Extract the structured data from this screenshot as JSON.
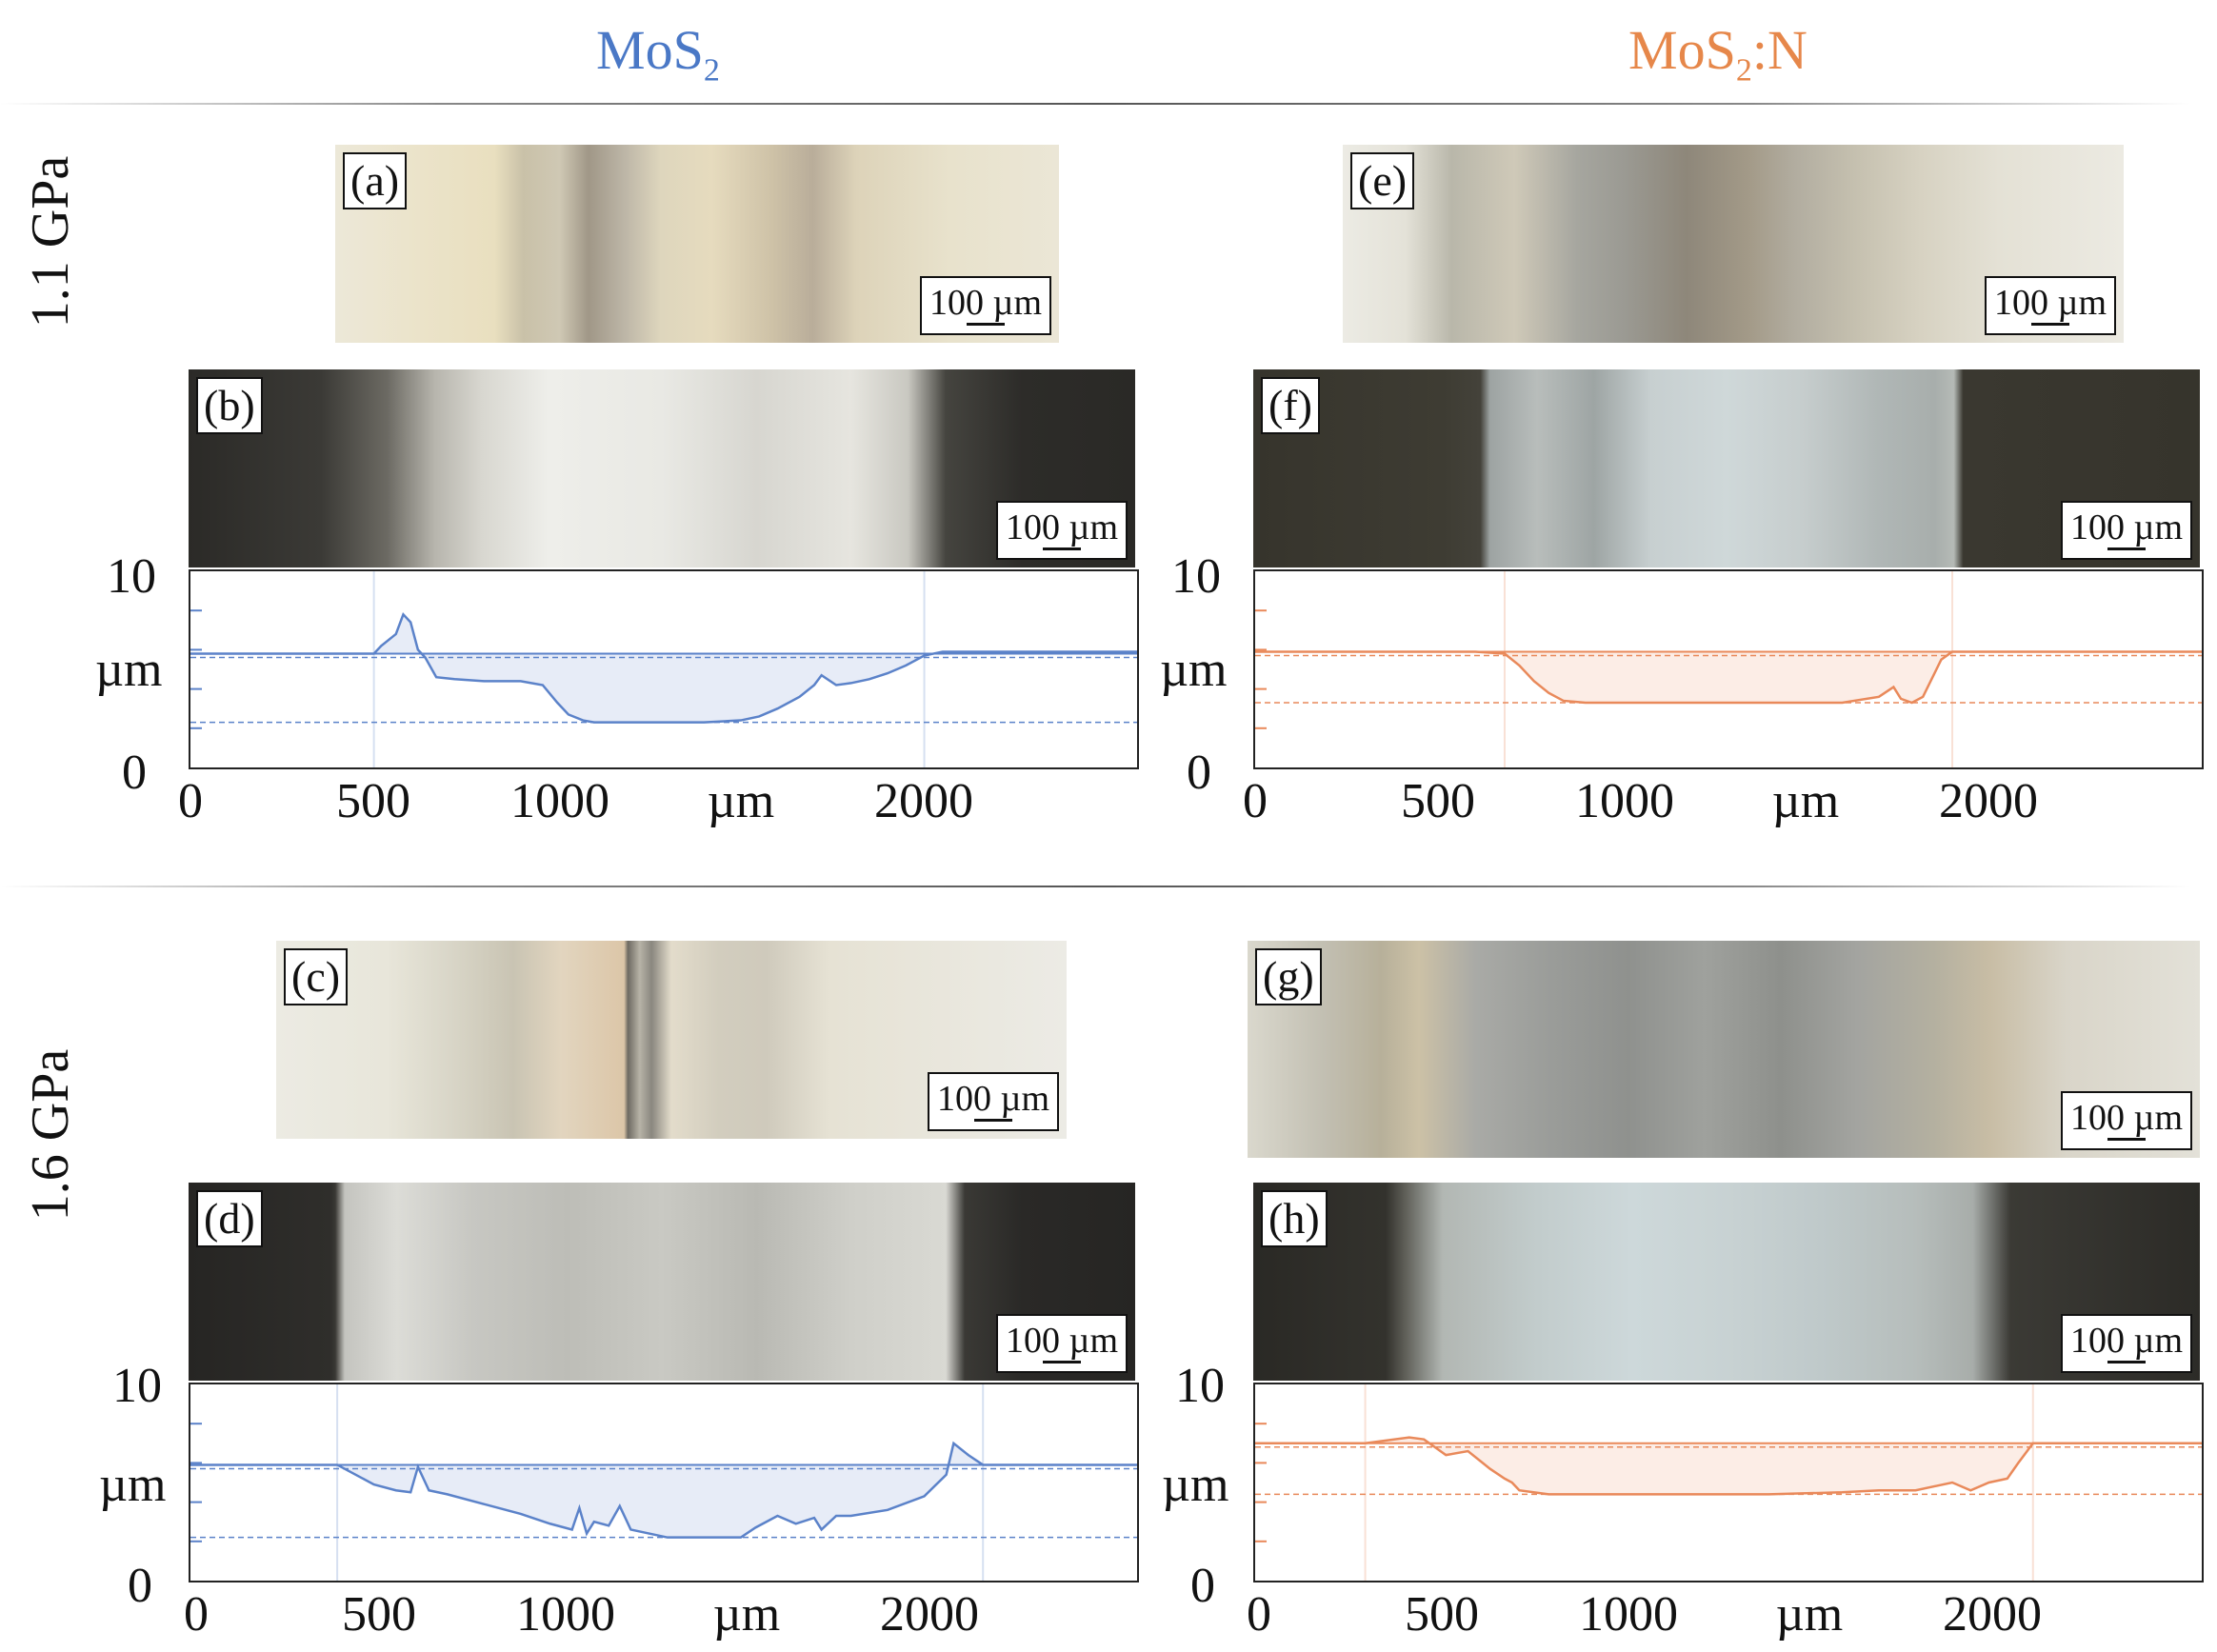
{
  "columns": {
    "left": {
      "title_main": "MoS",
      "title_sub": "2",
      "title_suffix": "",
      "color": "#4a78c6"
    },
    "right": {
      "title_main": "MoS",
      "title_sub": "2",
      "title_suffix": ":N",
      "color": "#e6874a"
    }
  },
  "rows": {
    "top": {
      "label": "1.1 GPa"
    },
    "bottom": {
      "label": "1.6 GPa"
    }
  },
  "panels": {
    "a": {
      "label": "(a)",
      "scale": "100 µm"
    },
    "b": {
      "label": "(b)",
      "scale": "100 µm"
    },
    "c": {
      "label": "(c)",
      "scale": "100 µm"
    },
    "d": {
      "label": "(d)",
      "scale": "100 µm"
    },
    "e": {
      "label": "(e)",
      "scale": "100 µm"
    },
    "f": {
      "label": "(f)",
      "scale": "100 µm"
    },
    "g": {
      "label": "(g)",
      "scale": "100 µm"
    },
    "h": {
      "label": "(h)",
      "scale": "100 µm"
    }
  },
  "chart_data": [
    {
      "id": "profile-b",
      "type": "area",
      "color": "#5b82c9",
      "xlim": [
        0,
        2580
      ],
      "ylim": [
        0,
        10
      ],
      "xlabel": "µm",
      "ylabel": "µm",
      "xticks": [
        "0",
        "500",
        "1000",
        "2000"
      ],
      "yticks": [
        "10",
        "0"
      ],
      "x": [
        0,
        200,
        450,
        500,
        520,
        560,
        580,
        600,
        620,
        640,
        670,
        720,
        800,
        900,
        960,
        1000,
        1030,
        1070,
        1100,
        1200,
        1300,
        1400,
        1500,
        1550,
        1600,
        1660,
        1700,
        1720,
        1760,
        1800,
        1850,
        1900,
        1950,
        2000,
        2050,
        2300,
        2580
      ],
      "y": [
        5.8,
        5.8,
        5.8,
        5.8,
        6.2,
        6.8,
        7.8,
        7.4,
        6.0,
        5.6,
        4.6,
        4.5,
        4.4,
        4.4,
        4.2,
        3.3,
        2.7,
        2.4,
        2.3,
        2.3,
        2.3,
        2.3,
        2.4,
        2.6,
        3.0,
        3.6,
        4.2,
        4.7,
        4.2,
        4.3,
        4.5,
        4.8,
        5.2,
        5.7,
        5.9,
        5.9,
        5.9
      ]
    },
    {
      "id": "profile-f",
      "type": "area",
      "color": "#e9895a",
      "xlim": [
        0,
        2580
      ],
      "ylim": [
        0,
        10
      ],
      "xlabel": "µm",
      "ylabel": "µm",
      "xticks": [
        "0",
        "500",
        "1000",
        "2000"
      ],
      "yticks": [
        "10",
        "0"
      ],
      "x": [
        0,
        300,
        600,
        680,
        720,
        760,
        800,
        840,
        900,
        1000,
        1200,
        1400,
        1600,
        1700,
        1740,
        1760,
        1790,
        1820,
        1870,
        1900,
        2000,
        2300,
        2580
      ],
      "y": [
        5.9,
        5.9,
        5.9,
        5.8,
        5.2,
        4.4,
        3.8,
        3.4,
        3.3,
        3.3,
        3.3,
        3.3,
        3.3,
        3.6,
        4.1,
        3.5,
        3.3,
        3.6,
        5.5,
        5.9,
        5.9,
        5.9,
        5.9
      ]
    },
    {
      "id": "profile-d",
      "type": "area",
      "color": "#5b82c9",
      "xlim": [
        0,
        2580
      ],
      "ylim": [
        0,
        10
      ],
      "xlabel": "µm",
      "ylabel": "µm",
      "xticks": [
        "0",
        "500",
        "1000",
        "2000"
      ],
      "yticks": [
        "10",
        "0"
      ],
      "x": [
        0,
        200,
        400,
        440,
        500,
        560,
        600,
        620,
        650,
        700,
        800,
        900,
        980,
        1040,
        1060,
        1080,
        1100,
        1140,
        1170,
        1200,
        1300,
        1400,
        1500,
        1540,
        1600,
        1650,
        1700,
        1720,
        1760,
        1800,
        1900,
        2000,
        2060,
        2080,
        2120,
        2160,
        2300,
        2580
      ],
      "y": [
        5.9,
        5.9,
        5.9,
        5.5,
        4.9,
        4.6,
        4.5,
        5.8,
        4.6,
        4.4,
        3.9,
        3.4,
        2.9,
        2.6,
        3.7,
        2.4,
        3.0,
        2.8,
        3.8,
        2.6,
        2.2,
        2.2,
        2.2,
        2.7,
        3.3,
        2.9,
        3.2,
        2.6,
        3.3,
        3.3,
        3.6,
        4.3,
        5.4,
        7.0,
        6.4,
        5.9,
        5.9,
        5.9
      ]
    },
    {
      "id": "profile-h",
      "type": "area",
      "color": "#e9895a",
      "xlim": [
        0,
        2580
      ],
      "ylim": [
        0,
        10
      ],
      "xlabel": "µm",
      "ylabel": "µm",
      "xticks": [
        "0",
        "500",
        "1000",
        "2000"
      ],
      "yticks": [
        "10",
        "0"
      ],
      "x": [
        0,
        300,
        420,
        460,
        520,
        580,
        620,
        640,
        680,
        700,
        720,
        800,
        900,
        1000,
        1200,
        1400,
        1600,
        1700,
        1800,
        1900,
        1950,
        2000,
        2050,
        2080,
        2120,
        2200,
        2580
      ],
      "y": [
        7.0,
        7.0,
        7.3,
        7.2,
        6.4,
        6.6,
        6.0,
        5.7,
        5.2,
        5.0,
        4.6,
        4.4,
        4.4,
        4.4,
        4.4,
        4.4,
        4.5,
        4.6,
        4.6,
        5.0,
        4.6,
        5.0,
        5.2,
        6.0,
        7.0,
        7.0,
        7.0
      ]
    }
  ]
}
